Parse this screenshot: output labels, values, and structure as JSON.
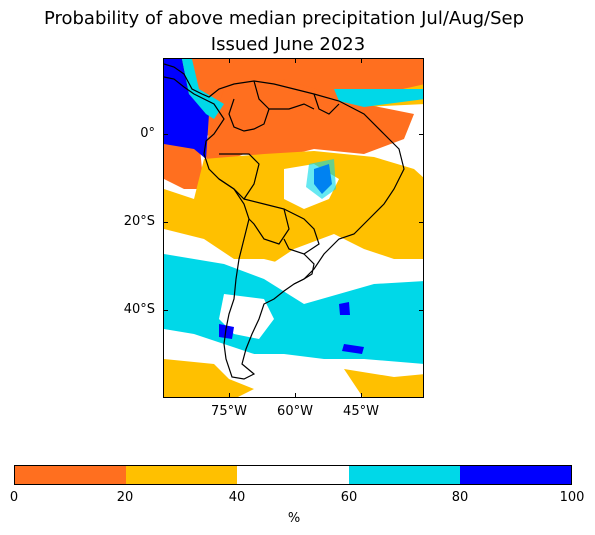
{
  "title_line1": "Probability of above median precipitation Jul/Aug/Sep",
  "title_line2": "Issued June 2023",
  "map": {
    "lat_labels": [
      "0°",
      "20°S",
      "40°S"
    ],
    "lon_labels": [
      "75°W",
      "60°W",
      "45°W"
    ]
  },
  "colorbar": {
    "ticks": [
      "0",
      "20",
      "40",
      "60",
      "80",
      "100"
    ],
    "unit": "%",
    "colors": [
      "#ff6f1f",
      "#ffc000",
      "#ffffff",
      "#00d8e8",
      "#0000ff"
    ]
  }
}
